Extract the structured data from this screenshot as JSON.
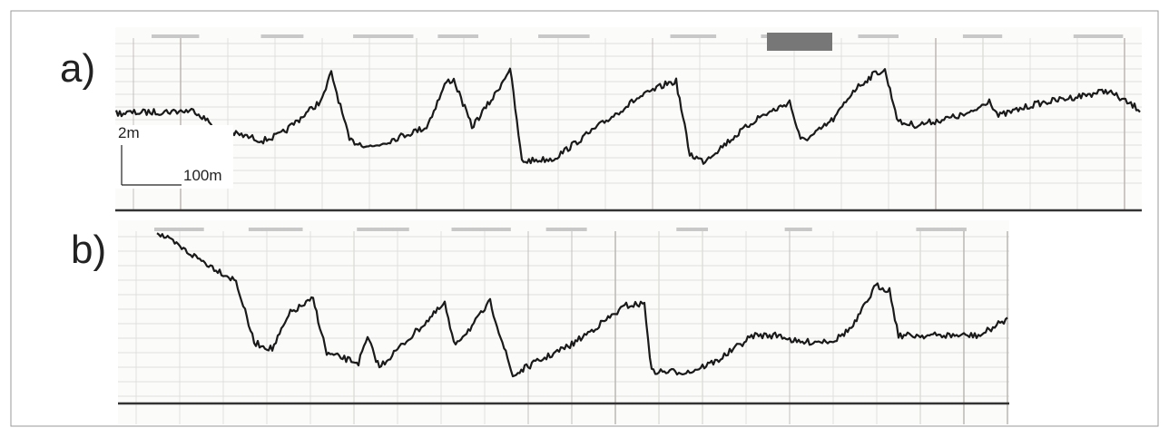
{
  "panels": [
    {
      "label": "a)"
    },
    {
      "label": "b)"
    }
  ],
  "scale_bar": {
    "vertical": "2m",
    "horizontal": "100m"
  }
}
